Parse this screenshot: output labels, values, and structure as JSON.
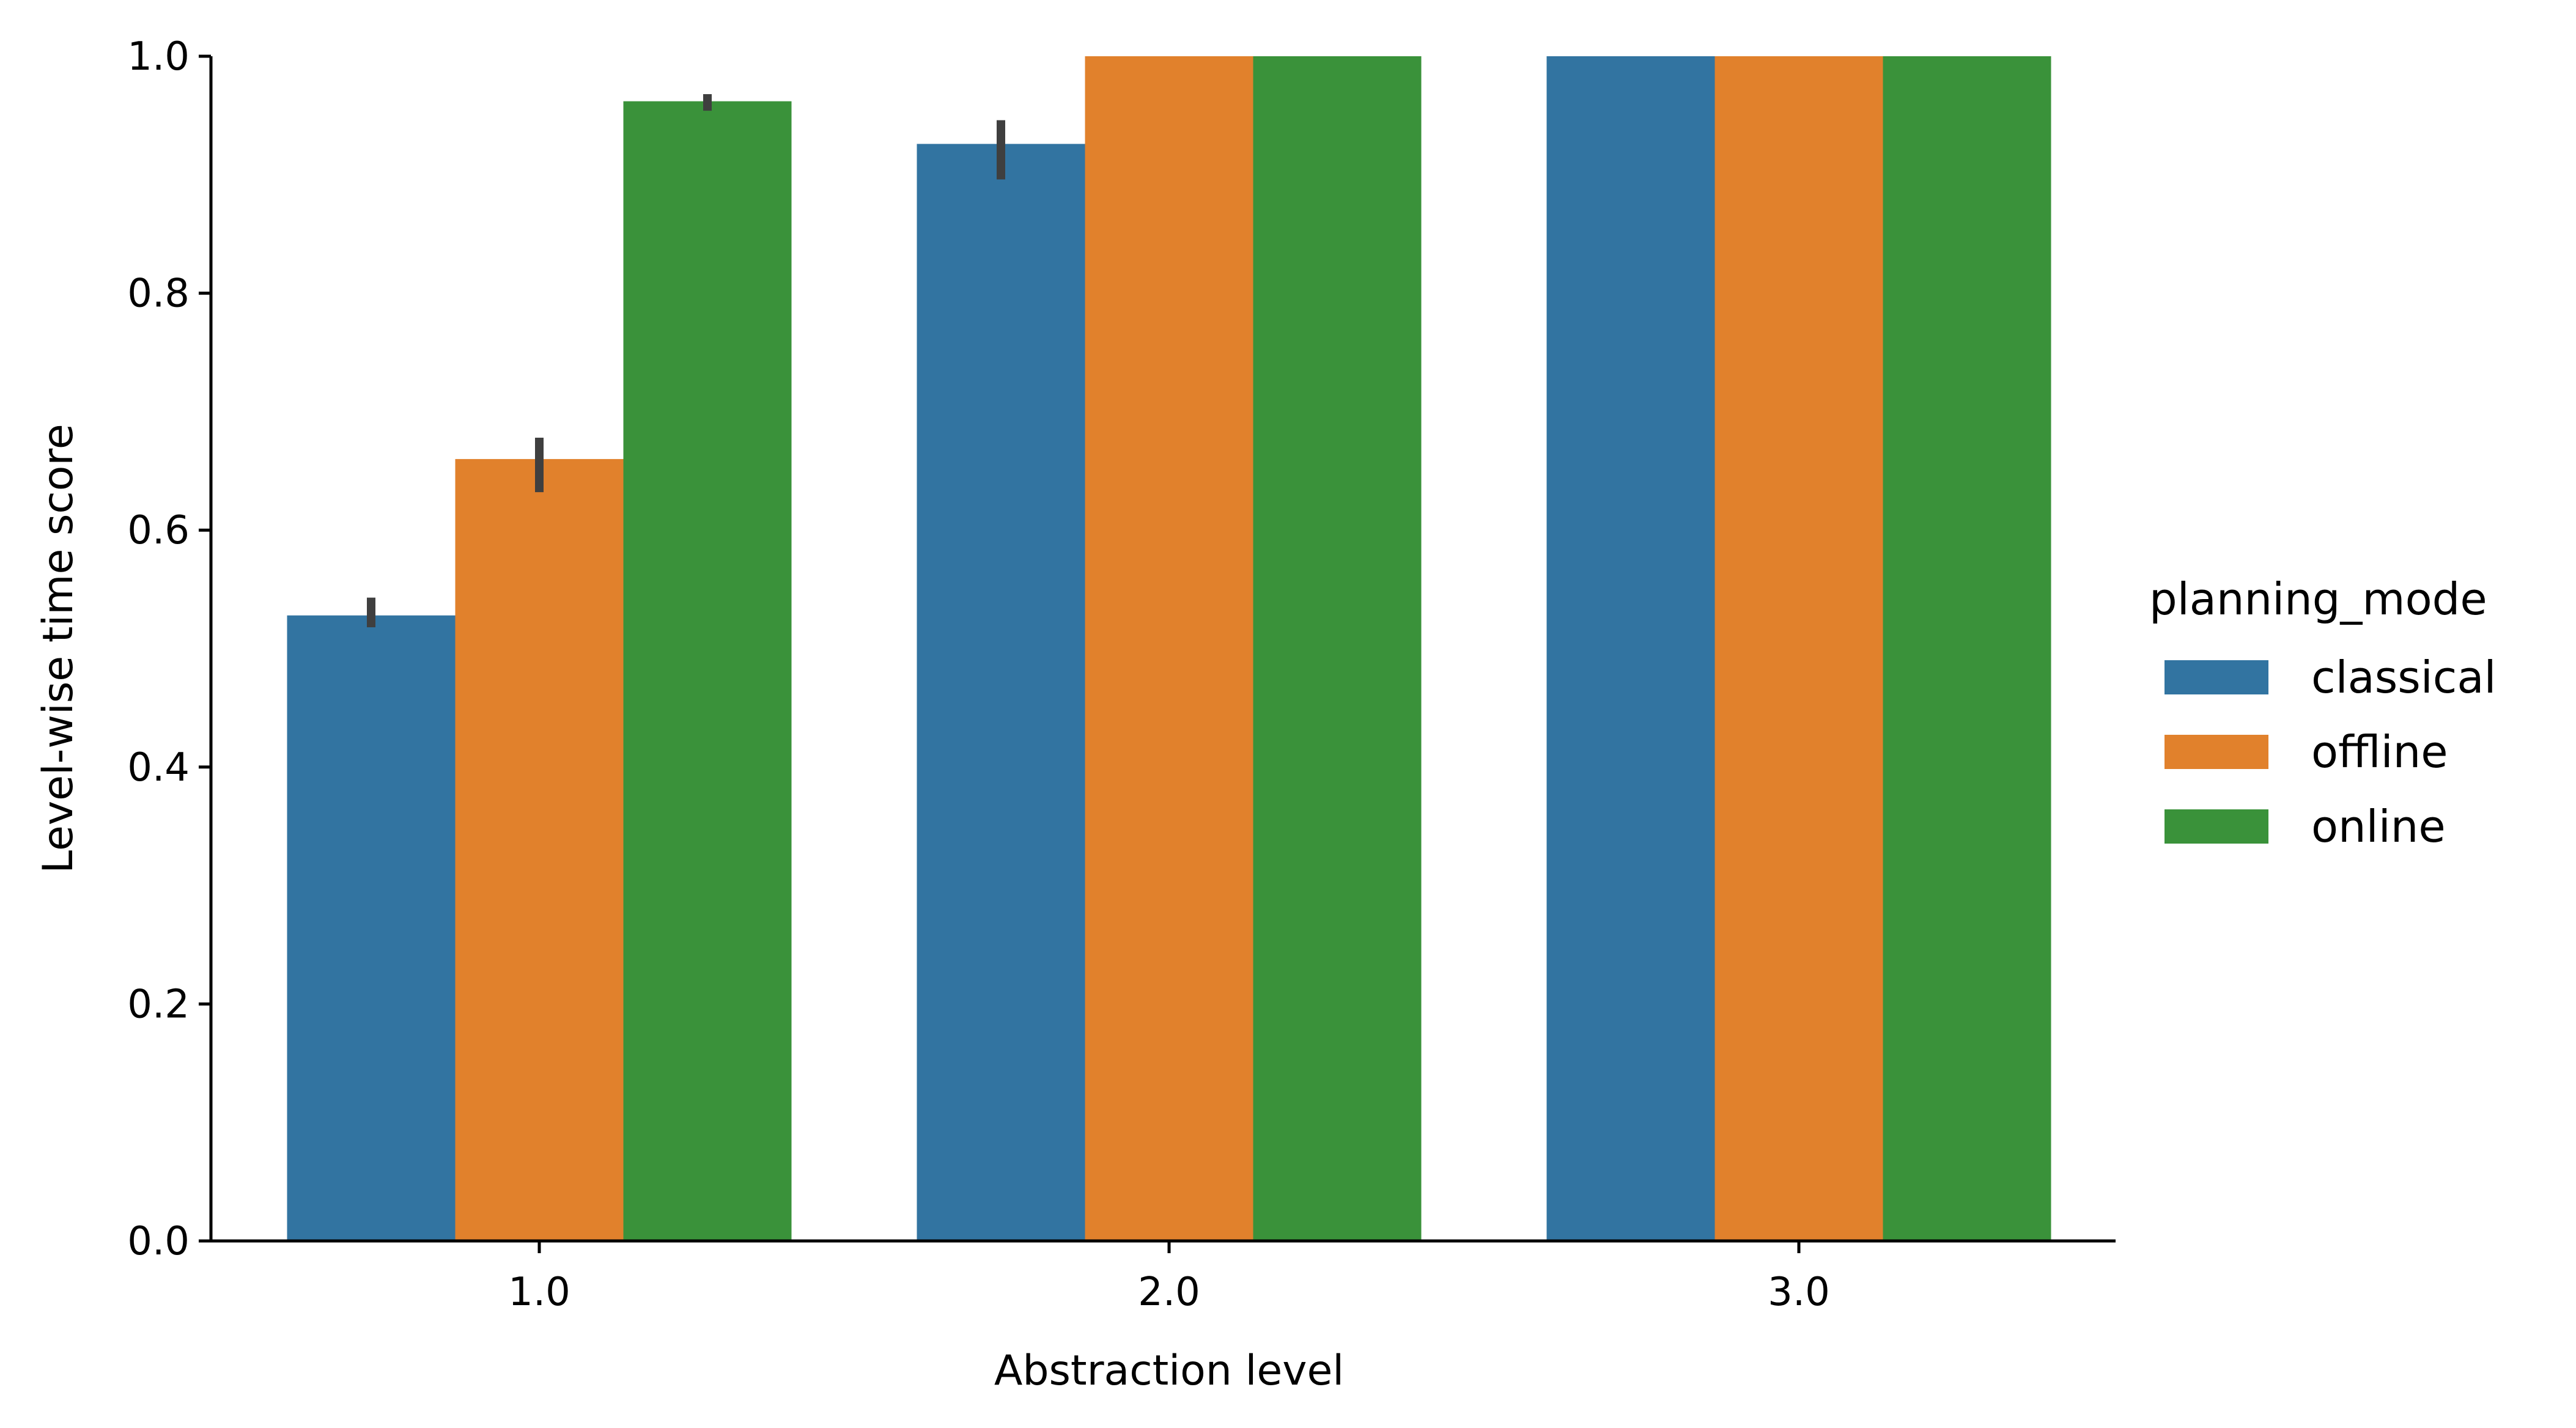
{
  "chart_data": {
    "type": "bar",
    "xlabel": "Abstraction level",
    "ylabel": "Level-wise time score",
    "categories": [
      "1.0",
      "2.0",
      "3.0"
    ],
    "ylim": [
      0.0,
      1.0
    ],
    "yticks": [
      "0.0",
      "0.2",
      "0.4",
      "0.6",
      "0.8",
      "1.0"
    ],
    "grid": false,
    "legend": {
      "title": "planning_mode",
      "placement": "right"
    },
    "series": [
      {
        "name": "classical",
        "color": "#3274a1",
        "values": [
          0.528,
          0.926,
          1.0
        ],
        "error_low": [
          0.518,
          0.896,
          null
        ],
        "error_high": [
          0.543,
          0.946,
          null
        ]
      },
      {
        "name": "offline",
        "color": "#e1812c",
        "values": [
          0.66,
          1.0,
          1.0
        ],
        "error_low": [
          0.632,
          null,
          null
        ],
        "error_high": [
          0.678,
          null,
          null
        ]
      },
      {
        "name": "online",
        "color": "#3a923a",
        "values": [
          0.962,
          1.0,
          1.0
        ],
        "error_low": [
          0.954,
          null,
          null
        ],
        "error_high": [
          0.968,
          null,
          null
        ]
      }
    ]
  }
}
